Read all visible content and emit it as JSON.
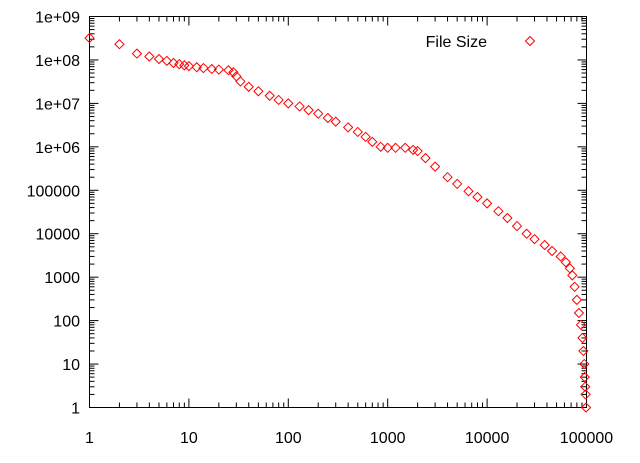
{
  "chart_data": {
    "type": "scatter",
    "title": "",
    "xlabel": "",
    "ylabel": "",
    "x_scale": "log",
    "y_scale": "log",
    "xlim": [
      1,
      100000
    ],
    "ylim": [
      1,
      1000000000
    ],
    "x_ticks": [
      1,
      10,
      100,
      1000,
      10000,
      100000
    ],
    "x_tick_labels": [
      "1",
      "10",
      "100",
      "1000",
      "10000",
      "100000"
    ],
    "y_ticks": [
      1,
      10,
      100,
      1000,
      10000,
      100000,
      1000000,
      10000000,
      100000000,
      1000000000
    ],
    "y_tick_labels": [
      "1",
      "10",
      "100",
      "1000",
      "10000",
      "100000",
      "1e+06",
      "1e+07",
      "1e+08",
      "1e+09"
    ],
    "grid": false,
    "legend_position": "top-right",
    "marker": "diamond",
    "series": [
      {
        "name": "File Size",
        "color": "#ff0000",
        "points": [
          [
            1,
            320000000
          ],
          [
            2,
            230000000
          ],
          [
            3,
            140000000
          ],
          [
            4,
            120000000
          ],
          [
            5,
            105000000
          ],
          [
            6,
            95000000
          ],
          [
            7,
            85000000
          ],
          [
            8,
            80000000
          ],
          [
            9,
            75000000
          ],
          [
            10,
            72000000
          ],
          [
            12,
            68000000
          ],
          [
            14,
            65000000
          ],
          [
            17,
            62000000
          ],
          [
            20,
            60000000
          ],
          [
            25,
            58000000
          ],
          [
            28,
            52000000
          ],
          [
            30,
            42000000
          ],
          [
            33,
            32000000
          ],
          [
            40,
            24000000
          ],
          [
            50,
            19000000
          ],
          [
            65,
            15000000
          ],
          [
            80,
            12000000
          ],
          [
            100,
            10000000
          ],
          [
            130,
            8500000
          ],
          [
            160,
            7000000
          ],
          [
            200,
            5800000
          ],
          [
            250,
            4600000
          ],
          [
            300,
            3800000
          ],
          [
            400,
            2800000
          ],
          [
            500,
            2200000
          ],
          [
            600,
            1700000
          ],
          [
            700,
            1300000
          ],
          [
            850,
            1000000
          ],
          [
            1000,
            950000
          ],
          [
            1200,
            950000
          ],
          [
            1500,
            950000
          ],
          [
            1800,
            850000
          ],
          [
            2000,
            800000
          ],
          [
            2400,
            550000
          ],
          [
            3000,
            350000
          ],
          [
            4000,
            200000
          ],
          [
            5000,
            140000
          ],
          [
            6500,
            95000
          ],
          [
            8000,
            70000
          ],
          [
            10000,
            50000
          ],
          [
            13000,
            33000
          ],
          [
            16000,
            23000
          ],
          [
            20000,
            15000
          ],
          [
            25000,
            10000
          ],
          [
            30000,
            7500
          ],
          [
            38000,
            5500
          ],
          [
            45000,
            4000
          ],
          [
            55000,
            3000
          ],
          [
            62000,
            2200
          ],
          [
            68000,
            1600
          ],
          [
            72000,
            1100
          ],
          [
            76000,
            600
          ],
          [
            80000,
            300
          ],
          [
            84000,
            150
          ],
          [
            88000,
            80
          ],
          [
            91000,
            40
          ],
          [
            93000,
            20
          ],
          [
            95000,
            10
          ],
          [
            96000,
            5
          ],
          [
            97000,
            3
          ],
          [
            98000,
            2
          ],
          [
            99000,
            1
          ]
        ]
      }
    ]
  }
}
